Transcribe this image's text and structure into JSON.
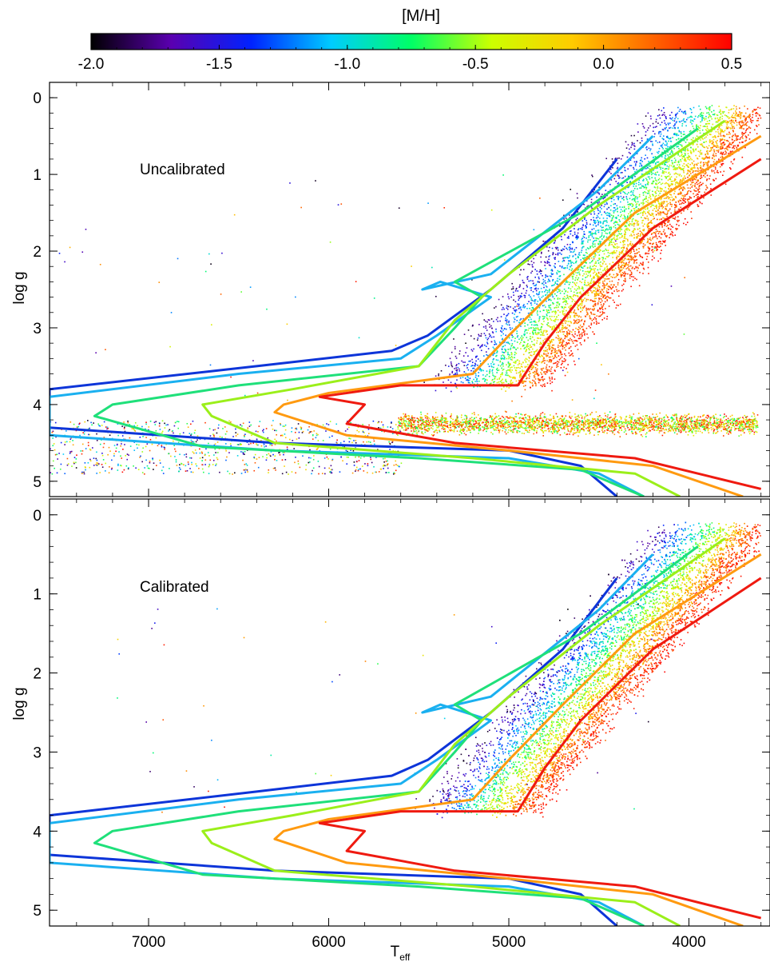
{
  "colorbar": {
    "title": "[M/H]",
    "min": -2.0,
    "max": 0.5,
    "tick_labels": [
      "-2.0",
      "-1.5",
      "-1.0",
      "-0.5",
      "0.0",
      "0.5"
    ],
    "tick_values": [
      -2.0,
      -1.5,
      -1.0,
      -0.5,
      0.0,
      0.5
    ],
    "colormap": [
      "#000000",
      "#5a00b0",
      "#0022ff",
      "#00ccff",
      "#00ff66",
      "#ccff00",
      "#ffcc00",
      "#ff6600",
      "#ff0000"
    ]
  },
  "chart_data": [
    {
      "type": "scatter",
      "panel": "top",
      "annotation": "Uncalibrated",
      "xlabel": "",
      "ylabel": "log g",
      "xlim": [
        7550,
        3550
      ],
      "ylim": [
        -0.2,
        5.2
      ],
      "y_tick_labels": [
        "0",
        "1",
        "2",
        "3",
        "4",
        "5"
      ],
      "y_tick_values": [
        0,
        1,
        2,
        3,
        4,
        5
      ],
      "x_tick_values": [
        7000,
        6000,
        5000,
        4000
      ],
      "x_tick_labels_shown": false,
      "scatter_regions": [
        {
          "feature": "giant branch",
          "teff_range": [
            5400,
            3650
          ],
          "logg_range": [
            0.1,
            3.8
          ],
          "color_gradient": "metal-poor (blue) at hot side, metal-rich (red) at cool side"
        },
        {
          "feature": "main sequence dwarfs",
          "teff_range": [
            5700,
            3600
          ],
          "logg_range": [
            3.8,
            4.6
          ],
          "color_gradient": "mixed, mostly orange/red"
        },
        {
          "feature": "hot dwarfs",
          "teff_range": [
            7500,
            5600
          ],
          "logg_range": [
            4.0,
            4.9
          ],
          "color_gradient": "mixed"
        }
      ],
      "series": [
        {
          "mh": -1.5,
          "color": "#0d35d9",
          "points": [
            [
              4400,
              0.8
            ],
            [
              4700,
              1.7
            ],
            [
              5100,
              2.5
            ],
            [
              5450,
              3.1
            ],
            [
              5650,
              3.3
            ],
            [
              6400,
              3.5
            ],
            [
              7550,
              3.8
            ],
            [
              7550,
              4.3
            ],
            [
              6300,
              4.5
            ],
            [
              5000,
              4.6
            ],
            [
              4600,
              4.8
            ],
            [
              4400,
              5.2
            ]
          ]
        },
        {
          "mh": -1.3,
          "color": "#1ab0f0",
          "points": [
            [
              4200,
              0.5
            ],
            [
              4500,
              1.2
            ],
            [
              5100,
              2.3
            ],
            [
              5480,
              2.5
            ],
            [
              5380,
              2.4
            ],
            [
              5100,
              2.6
            ],
            [
              5400,
              3.1
            ],
            [
              5600,
              3.4
            ],
            [
              6500,
              3.6
            ],
            [
              7550,
              3.9
            ],
            [
              7550,
              4.4
            ],
            [
              6300,
              4.6
            ],
            [
              5000,
              4.7
            ],
            [
              4500,
              4.9
            ],
            [
              4250,
              5.2
            ]
          ]
        },
        {
          "mh": -0.8,
          "color": "#1fe07a",
          "points": [
            [
              3950,
              0.4
            ],
            [
              4600,
              1.5
            ],
            [
              5300,
              2.4
            ],
            [
              5150,
              2.6
            ],
            [
              5300,
              3.0
            ],
            [
              5500,
              3.5
            ],
            [
              6500,
              3.75
            ],
            [
              7200,
              4.0
            ],
            [
              7300,
              4.15
            ],
            [
              6700,
              4.55
            ],
            [
              5500,
              4.7
            ],
            [
              4600,
              4.85
            ],
            [
              4250,
              5.2
            ]
          ]
        },
        {
          "mh": -0.5,
          "color": "#9bef1a",
          "points": [
            [
              3800,
              0.3
            ],
            [
              4500,
              1.4
            ],
            [
              5000,
              2.3
            ],
            [
              5300,
              2.9
            ],
            [
              5500,
              3.5
            ],
            [
              6200,
              3.8
            ],
            [
              6700,
              4.0
            ],
            [
              6650,
              4.15
            ],
            [
              6300,
              4.5
            ],
            [
              5200,
              4.7
            ],
            [
              4300,
              4.9
            ],
            [
              4050,
              5.2
            ]
          ]
        },
        {
          "mh": -0.2,
          "color": "#ff9a10",
          "points": [
            [
              3600,
              0.5
            ],
            [
              4300,
              1.5
            ],
            [
              4700,
              2.4
            ],
            [
              5000,
              3.1
            ],
            [
              5200,
              3.6
            ],
            [
              6000,
              3.85
            ],
            [
              6250,
              4.0
            ],
            [
              6300,
              4.1
            ],
            [
              5900,
              4.4
            ],
            [
              5000,
              4.6
            ],
            [
              4200,
              4.8
            ],
            [
              3700,
              5.2
            ]
          ]
        },
        {
          "mh": 0.3,
          "color": "#ef1a10",
          "points": [
            [
              3600,
              0.8
            ],
            [
              4200,
              1.7
            ],
            [
              4600,
              2.6
            ],
            [
              4800,
              3.2
            ],
            [
              4950,
              3.75
            ],
            [
              5600,
              3.75
            ],
            [
              6050,
              3.9
            ],
            [
              5800,
              4.0
            ],
            [
              5900,
              4.25
            ],
            [
              5300,
              4.5
            ],
            [
              4300,
              4.7
            ],
            [
              3600,
              5.1
            ]
          ]
        }
      ]
    },
    {
      "type": "scatter",
      "panel": "bottom",
      "annotation": "Calibrated",
      "xlabel": "T_eff",
      "ylabel": "log g",
      "xlim": [
        7550,
        3550
      ],
      "ylim": [
        -0.2,
        5.2
      ],
      "y_tick_labels": [
        "0",
        "1",
        "2",
        "3",
        "4",
        "5"
      ],
      "y_tick_values": [
        0,
        1,
        2,
        3,
        4,
        5
      ],
      "x_tick_labels": [
        "7000",
        "6000",
        "5000",
        "4000"
      ],
      "x_tick_values": [
        7000,
        6000,
        5000,
        4000
      ],
      "scatter_regions": [
        {
          "feature": "giant branch",
          "teff_range": [
            5700,
            3650
          ],
          "logg_range": [
            0.0,
            3.9
          ],
          "color_gradient": "metal-poor (blue) at hot side, metal-rich (red) at cool side"
        }
      ],
      "series": [
        {
          "mh": -1.5,
          "color": "#0d35d9",
          "points": [
            [
              4400,
              0.8
            ],
            [
              4700,
              1.7
            ],
            [
              5100,
              2.5
            ],
            [
              5450,
              3.1
            ],
            [
              5650,
              3.3
            ],
            [
              6400,
              3.5
            ],
            [
              7550,
              3.8
            ],
            [
              7550,
              4.3
            ],
            [
              6300,
              4.5
            ],
            [
              5000,
              4.6
            ],
            [
              4600,
              4.8
            ],
            [
              4400,
              5.2
            ]
          ]
        },
        {
          "mh": -1.3,
          "color": "#1ab0f0",
          "points": [
            [
              4200,
              0.5
            ],
            [
              4500,
              1.2
            ],
            [
              5100,
              2.3
            ],
            [
              5480,
              2.5
            ],
            [
              5380,
              2.4
            ],
            [
              5100,
              2.6
            ],
            [
              5400,
              3.1
            ],
            [
              5600,
              3.4
            ],
            [
              6500,
              3.6
            ],
            [
              7550,
              3.9
            ],
            [
              7550,
              4.4
            ],
            [
              6300,
              4.6
            ],
            [
              5000,
              4.7
            ],
            [
              4500,
              4.9
            ],
            [
              4250,
              5.2
            ]
          ]
        },
        {
          "mh": -0.8,
          "color": "#1fe07a",
          "points": [
            [
              3950,
              0.4
            ],
            [
              4600,
              1.5
            ],
            [
              5300,
              2.4
            ],
            [
              5150,
              2.6
            ],
            [
              5300,
              3.0
            ],
            [
              5500,
              3.5
            ],
            [
              6500,
              3.75
            ],
            [
              7200,
              4.0
            ],
            [
              7300,
              4.15
            ],
            [
              6700,
              4.55
            ],
            [
              5500,
              4.7
            ],
            [
              4600,
              4.85
            ],
            [
              4250,
              5.2
            ]
          ]
        },
        {
          "mh": -0.5,
          "color": "#9bef1a",
          "points": [
            [
              3800,
              0.3
            ],
            [
              4500,
              1.4
            ],
            [
              5000,
              2.3
            ],
            [
              5300,
              2.9
            ],
            [
              5500,
              3.5
            ],
            [
              6200,
              3.8
            ],
            [
              6700,
              4.0
            ],
            [
              6650,
              4.15
            ],
            [
              6300,
              4.5
            ],
            [
              5200,
              4.7
            ],
            [
              4300,
              4.9
            ],
            [
              4050,
              5.2
            ]
          ]
        },
        {
          "mh": -0.2,
          "color": "#ff9a10",
          "points": [
            [
              3600,
              0.5
            ],
            [
              4300,
              1.5
            ],
            [
              4700,
              2.4
            ],
            [
              5000,
              3.1
            ],
            [
              5200,
              3.6
            ],
            [
              6000,
              3.85
            ],
            [
              6250,
              4.0
            ],
            [
              6300,
              4.1
            ],
            [
              5900,
              4.4
            ],
            [
              5000,
              4.6
            ],
            [
              4200,
              4.8
            ],
            [
              3700,
              5.2
            ]
          ]
        },
        {
          "mh": 0.3,
          "color": "#ef1a10",
          "points": [
            [
              3600,
              0.8
            ],
            [
              4200,
              1.7
            ],
            [
              4600,
              2.6
            ],
            [
              4800,
              3.2
            ],
            [
              4950,
              3.75
            ],
            [
              5600,
              3.75
            ],
            [
              6050,
              3.9
            ],
            [
              5800,
              4.0
            ],
            [
              5900,
              4.25
            ],
            [
              5300,
              4.5
            ],
            [
              4300,
              4.7
            ],
            [
              3600,
              5.1
            ]
          ]
        }
      ]
    }
  ]
}
